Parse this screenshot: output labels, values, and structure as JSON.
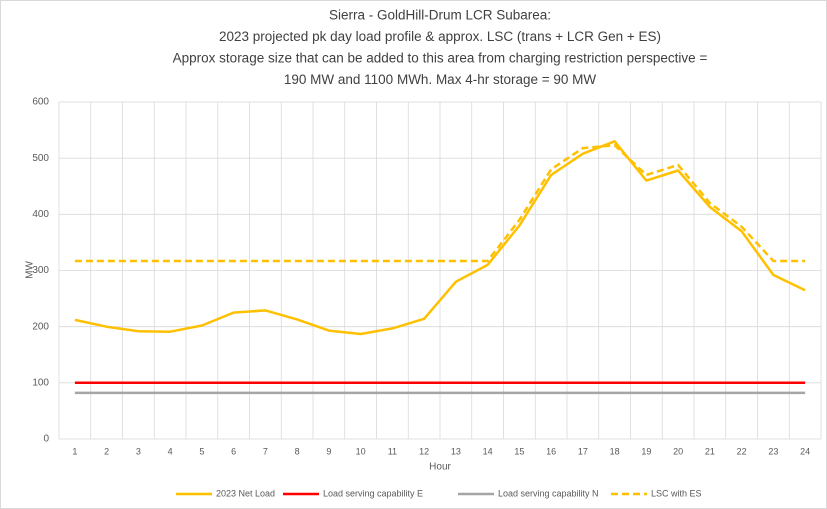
{
  "chart_data": {
    "type": "line",
    "title": [
      "Sierra - GoldHill-Drum LCR Subarea:",
      "2023 projected pk day load profile & approx. LSC (trans + LCR Gen + ES)",
      "Approx storage size that can be added to this area from charging restriction perspective =",
      "190 MW and 1100 MWh. Max 4-hr storage = 90 MW"
    ],
    "x_label": "Hour",
    "y_label": "MW",
    "categories": [
      "1",
      "2",
      "3",
      "4",
      "5",
      "6",
      "7",
      "8",
      "9",
      "10",
      "11",
      "12",
      "13",
      "14",
      "15",
      "16",
      "17",
      "18",
      "19",
      "20",
      "21",
      "22",
      "23",
      "24"
    ],
    "series": [
      {
        "name": "2023 Net Load",
        "color": "#FFC000",
        "dash": false,
        "values": [
          212,
          200,
          192,
          191,
          202,
          225,
          229,
          213,
          193,
          187,
          197,
          214,
          280,
          310,
          380,
          470,
          508,
          530,
          460,
          478,
          413,
          370,
          292,
          265
        ]
      },
      {
        "name": "Load serving capability E",
        "color": "#FF0000",
        "dash": false,
        "values": [
          100,
          100,
          100,
          100,
          100,
          100,
          100,
          100,
          100,
          100,
          100,
          100,
          100,
          100,
          100,
          100,
          100,
          100,
          100,
          100,
          100,
          100,
          100,
          100
        ]
      },
      {
        "name": "Load serving capability N",
        "color": "#A5A5A5",
        "dash": false,
        "values": [
          82,
          82,
          82,
          82,
          82,
          82,
          82,
          82,
          82,
          82,
          82,
          82,
          82,
          82,
          82,
          82,
          82,
          82,
          82,
          82,
          82,
          82,
          82,
          82
        ]
      },
      {
        "name": "LSC with ES",
        "color": "#FFC000",
        "dash": true,
        "values": [
          317,
          317,
          317,
          317,
          317,
          317,
          317,
          317,
          317,
          317,
          317,
          317,
          317,
          317,
          390,
          480,
          518,
          523,
          470,
          488,
          420,
          378,
          317,
          317
        ]
      }
    ],
    "ylim": [
      0,
      600
    ],
    "yticks": [
      0,
      100,
      200,
      300,
      400,
      500,
      600
    ],
    "grid": true,
    "legend": "bottom"
  }
}
